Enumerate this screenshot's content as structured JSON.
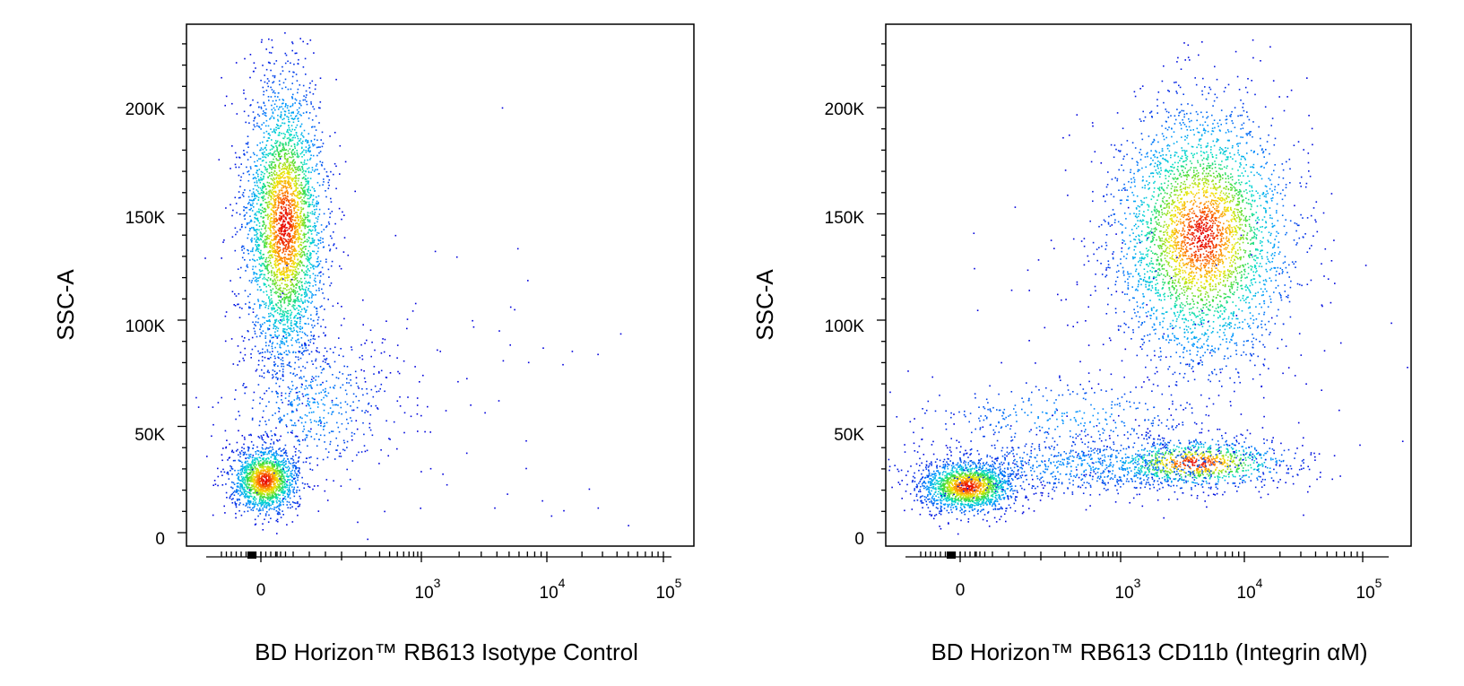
{
  "chart_data": [
    {
      "type": "scatter",
      "subtype": "flow-cytometry-density-dot-plot",
      "title": "",
      "xlabel": "BD Horizon™ RB613 Isotype Control",
      "ylabel": "SSC-A",
      "x_scale": "biexponential",
      "y_scale": "linear",
      "ylim": [
        0,
        235000
      ],
      "x_ticks": [
        {
          "value": 0,
          "label": "0"
        },
        {
          "value": 1000,
          "label": "10",
          "exponent": "3"
        },
        {
          "value": 10000,
          "label": "10",
          "exponent": "4"
        },
        {
          "value": 100000,
          "label": "10",
          "exponent": "5"
        }
      ],
      "y_ticks": [
        {
          "value": 0,
          "label": "0"
        },
        {
          "value": 50000,
          "label": "50K"
        },
        {
          "value": 100000,
          "label": "100K"
        },
        {
          "value": 150000,
          "label": "150K"
        },
        {
          "value": 200000,
          "label": "200K"
        }
      ],
      "populations": [
        {
          "name": "large-cells-negative",
          "x_center": 10,
          "y_center": 145000,
          "y_range": [
            65000,
            232000
          ]
        },
        {
          "name": "small-cells-negative",
          "x_center": 0,
          "y_center": 25000,
          "y_range": [
            10000,
            55000
          ]
        }
      ]
    },
    {
      "type": "scatter",
      "subtype": "flow-cytometry-density-dot-plot",
      "title": "",
      "xlabel": "BD Horizon™ RB613 CD11b (Integrin αM)",
      "ylabel": "SSC-A",
      "x_scale": "biexponential",
      "y_scale": "linear",
      "ylim": [
        0,
        235000
      ],
      "x_ticks": [
        {
          "value": 0,
          "label": "0"
        },
        {
          "value": 1000,
          "label": "10",
          "exponent": "3"
        },
        {
          "value": 10000,
          "label": "10",
          "exponent": "4"
        },
        {
          "value": 100000,
          "label": "10",
          "exponent": "5"
        }
      ],
      "y_ticks": [
        {
          "value": 0,
          "label": "0"
        },
        {
          "value": 50000,
          "label": "50K"
        },
        {
          "value": 100000,
          "label": "100K"
        },
        {
          "value": 150000,
          "label": "150K"
        },
        {
          "value": 200000,
          "label": "200K"
        }
      ],
      "populations": [
        {
          "name": "small-cells-negative",
          "x_center": 0,
          "y_center": 22000,
          "y_range": [
            10000,
            50000
          ]
        },
        {
          "name": "CD11b-positive-large",
          "x_center": 4500,
          "y_center": 140000,
          "y_range": [
            75000,
            232000
          ]
        },
        {
          "name": "CD11b-positive-small",
          "x_center": 4000,
          "y_center": 33000,
          "y_range": [
            18000,
            55000
          ]
        }
      ]
    }
  ]
}
